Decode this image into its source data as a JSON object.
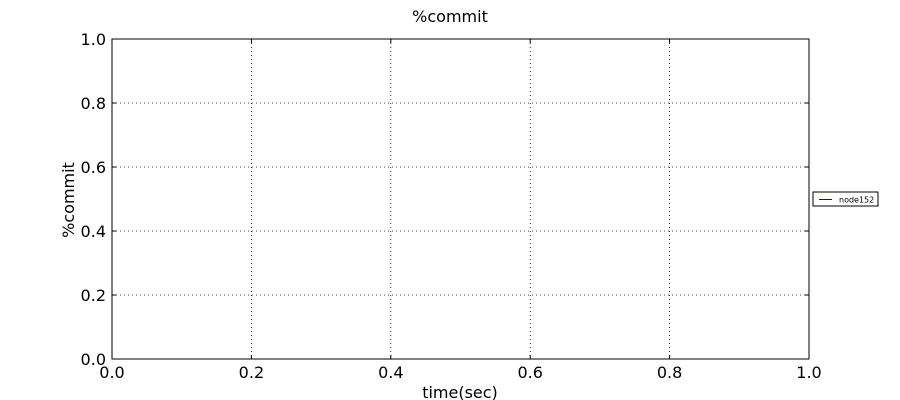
{
  "chart_data": {
    "type": "line",
    "title": "%commit",
    "xlabel": "time(sec)",
    "ylabel": "%commit",
    "xlim": [
      0.0,
      1.0
    ],
    "ylim": [
      0.0,
      1.0
    ],
    "xticks": [
      "0.0",
      "0.2",
      "0.4",
      "0.6",
      "0.8",
      "1.0"
    ],
    "yticks": [
      "0.0",
      "0.2",
      "0.4",
      "0.6",
      "0.8",
      "1.0"
    ],
    "grid": true,
    "legend_position": "right",
    "series": [
      {
        "name": "node152",
        "color": "#0000ff",
        "x": [],
        "y": []
      }
    ]
  }
}
